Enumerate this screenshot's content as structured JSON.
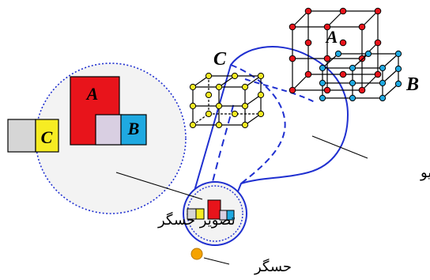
{
  "labels": {
    "object_a": "A",
    "object_b": "B",
    "object_c": "C",
    "image_a": "A",
    "image_b": "B",
    "image_c": "C",
    "perspective_plane": "صفحه پرسپکتیو",
    "sensor_image": "تصویر حسگر",
    "sensor": "حسگر"
  },
  "colors": {
    "outline_blue": "#1f2fd0",
    "red": "#e8141b",
    "cyan": "#1fa9e1",
    "yellow": "#f6ec23",
    "lavender": "#d9cfe2",
    "light_gray": "#d6d6d6",
    "circle_fill": "#f3f3f3",
    "sensor_orange": "#f5a300"
  }
}
